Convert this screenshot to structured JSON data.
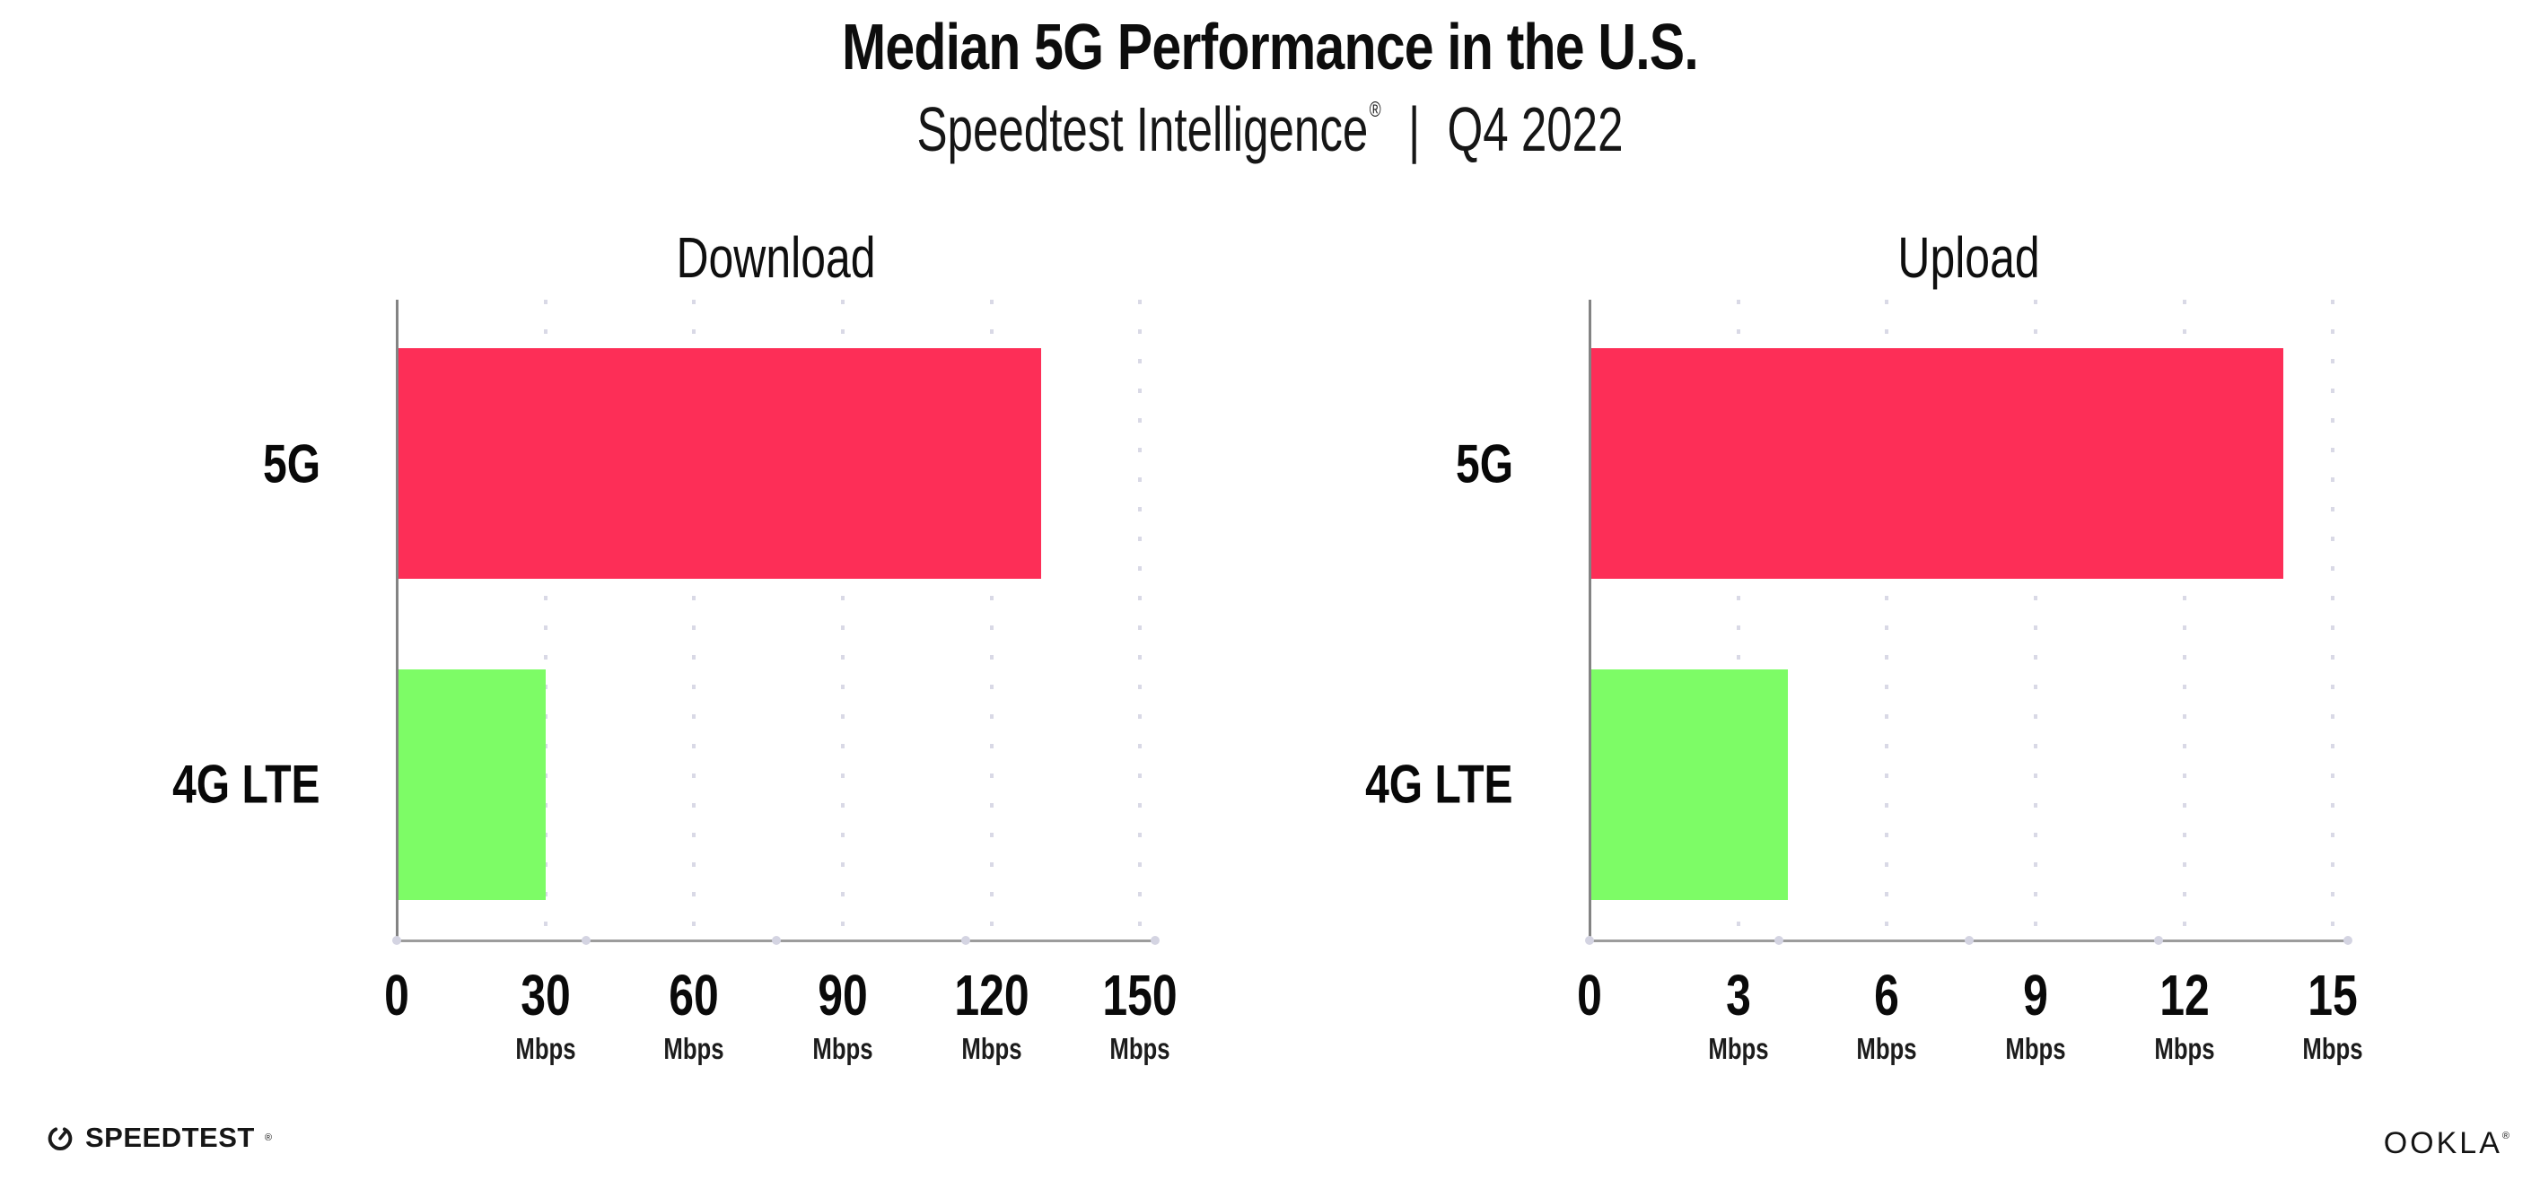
{
  "header": {
    "title": "Median 5G Performance in the U.S.",
    "subtitle": {
      "brand": "Speedtest Intelligence",
      "registered": "®",
      "divider": "|",
      "period": "Q4 2022"
    }
  },
  "chart_data": [
    {
      "type": "bar",
      "orientation": "horizontal",
      "title": "Download",
      "categories": [
        "5G",
        "4G LTE"
      ],
      "values": [
        130,
        30
      ],
      "unit": "Mbps",
      "xlim": [
        0,
        153
      ],
      "xticks": [
        0,
        30,
        60,
        90,
        120,
        150
      ],
      "bar_colors": [
        "#fd2e57",
        "#7dfc66"
      ],
      "grid": "dotted-vertical",
      "legend": false
    },
    {
      "type": "bar",
      "orientation": "horizontal",
      "title": "Upload",
      "categories": [
        "5G",
        "4G LTE"
      ],
      "values": [
        14,
        4
      ],
      "unit": "Mbps",
      "xlim": [
        0,
        15.3
      ],
      "xticks": [
        0,
        3,
        6,
        9,
        12,
        15
      ],
      "bar_colors": [
        "#fd2e57",
        "#7dfc66"
      ],
      "grid": "dotted-vertical",
      "legend": false
    }
  ],
  "footer": {
    "speedtest_label": "SPEEDTEST",
    "speedtest_mark": "®",
    "ookla_label": "OOKLA",
    "ookla_mark": "®"
  },
  "colors": {
    "bar_5g": "#fd2e57",
    "bar_4g_lte": "#7dfc66",
    "axis_line": "#9c9c9c",
    "grid_dot": "#d9d9e6",
    "text": "#111111",
    "background": "#ffffff"
  }
}
